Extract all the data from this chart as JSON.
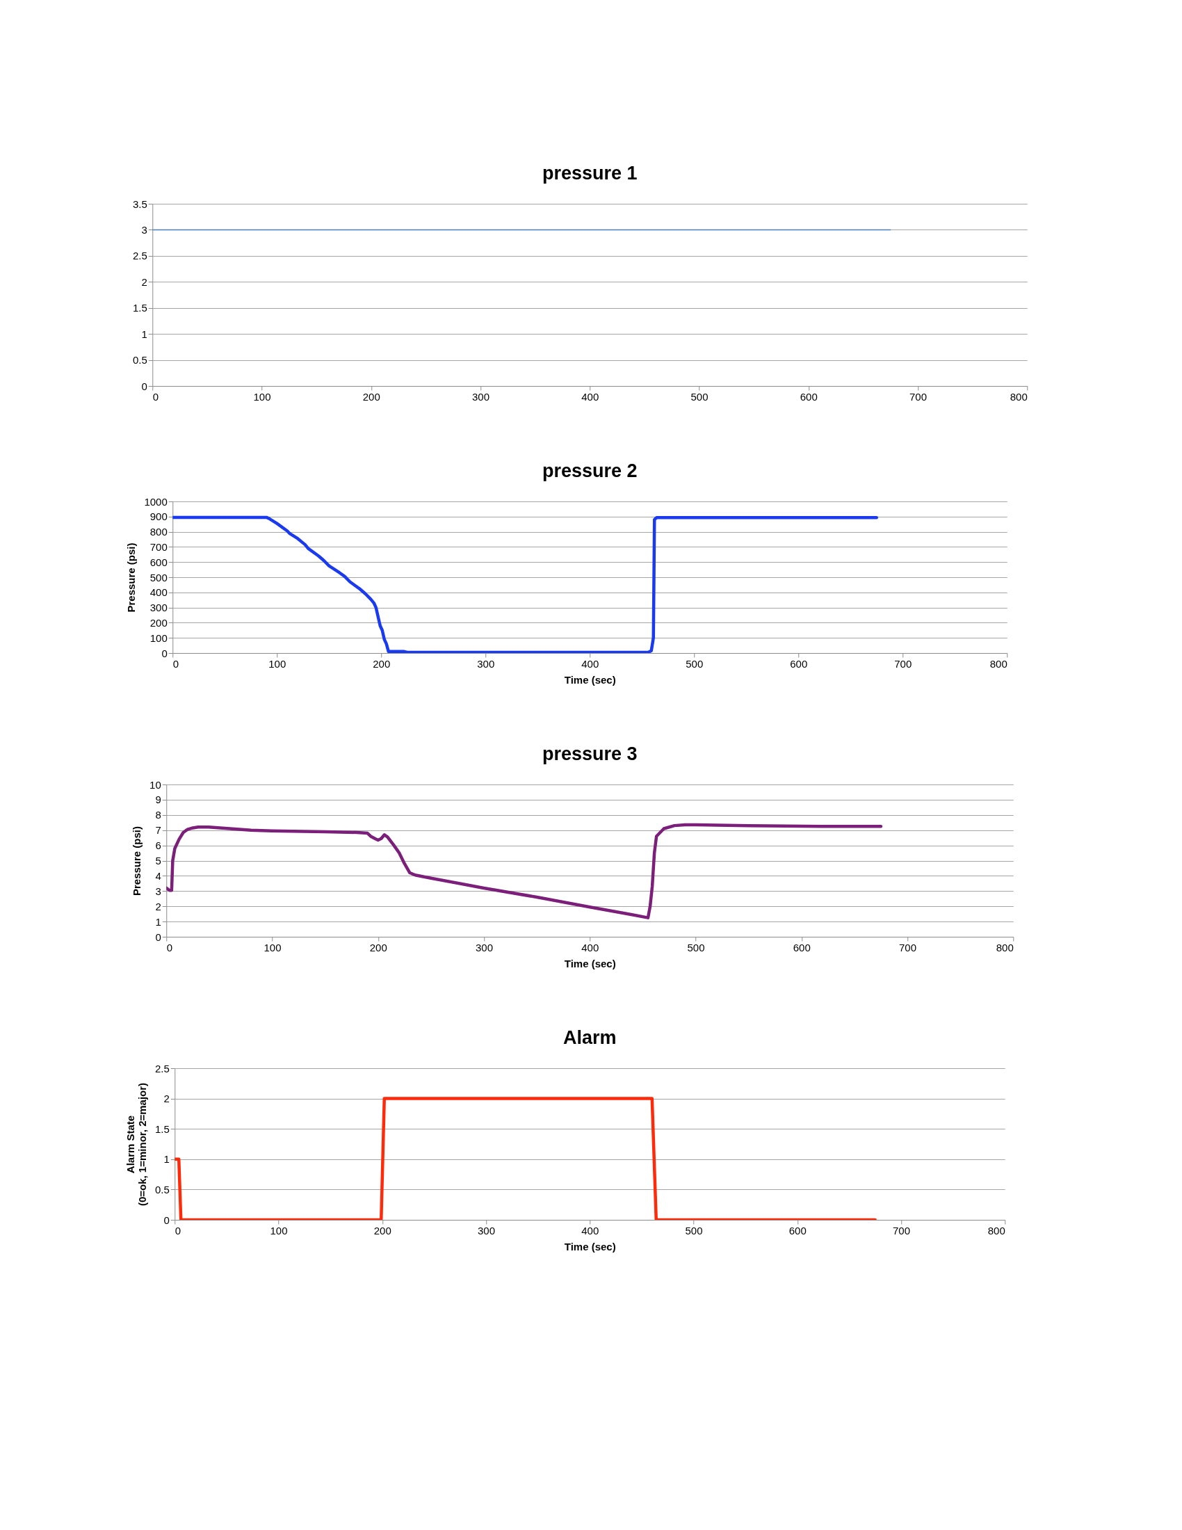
{
  "chart_data": [
    {
      "type": "line",
      "title": "pressure 1",
      "x": [
        0,
        675
      ],
      "series": [
        {
          "color": "#4a7ebb",
          "values": [
            3,
            3
          ]
        }
      ],
      "xlim": [
        0,
        800
      ],
      "xticks": [
        0,
        100,
        200,
        300,
        400,
        500,
        600,
        700,
        800
      ],
      "ylim": [
        0,
        3.5
      ],
      "yticks": [
        0,
        0.5,
        1,
        1.5,
        2,
        2.5,
        3,
        3.5
      ],
      "grid": "y"
    },
    {
      "type": "line",
      "title": "pressure 2",
      "xlabel": "Time (sec)",
      "ylabel": "Pressure (psi)",
      "x": [
        0,
        90,
        93,
        100,
        110,
        112,
        120,
        127,
        130,
        140,
        145,
        150,
        160,
        165,
        170,
        175,
        180,
        185,
        190,
        193,
        195,
        197,
        199,
        201,
        203,
        205,
        207,
        222,
        225,
        300,
        400,
        456,
        459,
        461,
        462,
        464,
        675
      ],
      "series": [
        {
          "color": "#1a3af0",
          "values": [
            895,
            895,
            885,
            855,
            805,
            790,
            755,
            715,
            690,
            640,
            610,
            575,
            530,
            505,
            470,
            445,
            420,
            390,
            355,
            330,
            300,
            240,
            180,
            150,
            90,
            60,
            10,
            10,
            5,
            5,
            5,
            5,
            15,
            100,
            880,
            893,
            893
          ]
        }
      ],
      "xlim": [
        0,
        800
      ],
      "xticks": [
        0,
        100,
        200,
        300,
        400,
        500,
        600,
        700,
        800
      ],
      "ylim": [
        0,
        1000
      ],
      "yticks": [
        0,
        100,
        200,
        300,
        400,
        500,
        600,
        700,
        800,
        900,
        1000
      ],
      "grid": "y"
    },
    {
      "type": "line",
      "title": "pressure 3",
      "xlabel": "Time (sec)",
      "ylabel": "Pressure (psi)",
      "x": [
        0,
        3,
        5,
        6,
        8,
        12,
        16,
        20,
        25,
        30,
        40,
        60,
        80,
        100,
        150,
        180,
        190,
        193,
        197,
        200,
        203,
        206,
        209,
        215,
        220,
        225,
        230,
        235,
        250,
        300,
        350,
        400,
        440,
        455,
        457,
        459,
        461,
        463,
        470,
        480,
        490,
        500,
        550,
        620,
        675
      ],
      "series": [
        {
          "color": "#7b1f7a",
          "values": [
            3.2,
            3.05,
            3.05,
            5,
            5.8,
            6.4,
            6.85,
            7.05,
            7.15,
            7.2,
            7.2,
            7.1,
            7.0,
            6.95,
            6.9,
            6.85,
            6.8,
            6.6,
            6.45,
            6.35,
            6.45,
            6.7,
            6.55,
            6.0,
            5.5,
            4.8,
            4.2,
            4.05,
            3.85,
            3.2,
            2.6,
            1.95,
            1.45,
            1.25,
            2.0,
            3.3,
            5.5,
            6.6,
            7.1,
            7.3,
            7.35,
            7.35,
            7.3,
            7.25,
            7.25
          ]
        }
      ],
      "xlim": [
        0,
        800
      ],
      "xticks": [
        0,
        100,
        200,
        300,
        400,
        500,
        600,
        700,
        800
      ],
      "ylim": [
        0,
        10
      ],
      "yticks": [
        0,
        1,
        2,
        3,
        4,
        5,
        6,
        7,
        8,
        9,
        10
      ],
      "grid": "y"
    },
    {
      "type": "line",
      "title": "Alarm",
      "xlabel": "Time (sec)",
      "ylabel": "Alarm State\n(0=ok, 1=minor, 2=major)",
      "x": [
        0,
        4,
        6,
        199,
        202,
        460,
        464,
        675
      ],
      "series": [
        {
          "color": "#ff2a0a",
          "values": [
            1,
            1,
            0,
            0,
            2,
            2,
            0,
            0
          ]
        }
      ],
      "xlim": [
        0,
        800
      ],
      "xticks": [
        0,
        100,
        200,
        300,
        400,
        500,
        600,
        700,
        800
      ],
      "ylim": [
        0,
        2.5
      ],
      "yticks": [
        0,
        0.5,
        1,
        1.5,
        2,
        2.5
      ],
      "grid": "y"
    }
  ]
}
